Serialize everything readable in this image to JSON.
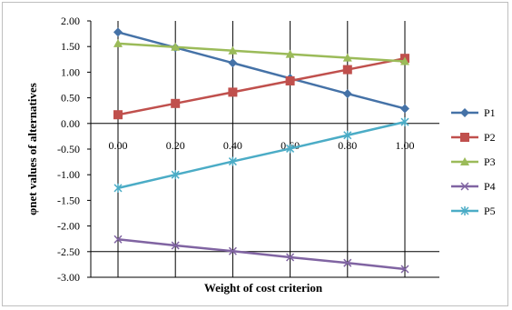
{
  "chart_data": {
    "type": "line",
    "title": "",
    "xlabel": "Weight of cost criterion",
    "ylabel": "φnet values of alternatives",
    "x": [
      0.0,
      0.2,
      0.4,
      0.6,
      0.8,
      1.0
    ],
    "x_tick_labels": [
      "0.00",
      "0.20",
      "0.40",
      "0.60",
      "0.80",
      "1.00"
    ],
    "y_ticks": [
      2.0,
      1.5,
      1.0,
      0.5,
      0.0,
      -0.5,
      -1.0,
      -1.5,
      -2.0,
      -2.5,
      -3.0
    ],
    "y_tick_labels": [
      "2.00",
      "1.50",
      "1.00",
      "0.50",
      "0.00",
      "-0.50",
      "-1.00",
      "-1.50",
      "-2.00",
      "-2.50",
      "-3.00"
    ],
    "ylim": [
      -3.0,
      2.0
    ],
    "xlim": [
      0.0,
      1.0
    ],
    "grid": "vertical",
    "legend_position": "right",
    "series": [
      {
        "name": "P1",
        "color": "#4572a7",
        "marker": "diamond",
        "values": [
          1.78,
          1.48,
          1.18,
          0.88,
          0.58,
          0.29
        ]
      },
      {
        "name": "P2",
        "color": "#c0504d",
        "marker": "square",
        "values": [
          0.17,
          0.39,
          0.61,
          0.83,
          1.05,
          1.27
        ]
      },
      {
        "name": "P3",
        "color": "#9bbb59",
        "marker": "triangle",
        "values": [
          1.56,
          1.49,
          1.42,
          1.35,
          1.28,
          1.21
        ]
      },
      {
        "name": "P4",
        "color": "#8064a2",
        "marker": "x",
        "values": [
          -2.26,
          -2.38,
          -2.49,
          -2.61,
          -2.72,
          -2.84
        ]
      },
      {
        "name": "P5",
        "color": "#4bacc6",
        "marker": "star",
        "values": [
          -1.26,
          -1.0,
          -0.74,
          -0.49,
          -0.23,
          0.03
        ]
      }
    ]
  }
}
